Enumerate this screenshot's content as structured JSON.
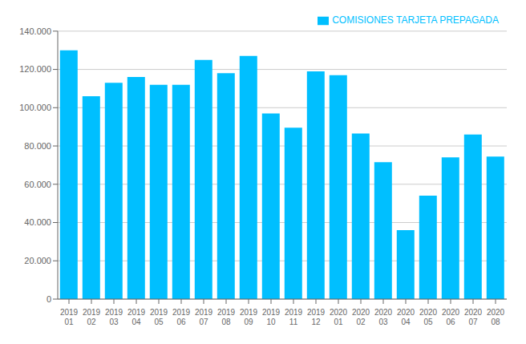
{
  "chart_data": {
    "type": "bar",
    "categories": [
      "2019\n01",
      "2019\n02",
      "2019\n03",
      "2019\n04",
      "2019\n05",
      "2019\n06",
      "2019\n07",
      "2019\n08",
      "2019\n09",
      "2019\n10",
      "2019\n11",
      "2019\n12",
      "2020\n01",
      "2020\n02",
      "2020\n03",
      "2020\n04",
      "2020\n05",
      "2020\n06",
      "2020\n07",
      "2020\n08"
    ],
    "series": [
      {
        "name": "COMISIONES TARJETA PREPAGADA",
        "color": "#00BFFF",
        "values": [
          130000,
          106000,
          113000,
          116000,
          112000,
          112000,
          125000,
          118000,
          127000,
          97000,
          89500,
          119000,
          117000,
          86500,
          71500,
          36000,
          54000,
          74000,
          86000,
          74500
        ]
      }
    ],
    "ylim": [
      0,
      140000
    ],
    "yticks": [
      0,
      {
        "value": 20000,
        "label": "20.000"
      },
      {
        "value": 40000,
        "label": "40.000"
      },
      {
        "value": 60000,
        "label": "60.000"
      },
      {
        "value": 80000,
        "label": "80.000"
      },
      {
        "value": 100000,
        "label": "100.000"
      },
      {
        "value": 120000,
        "label": "120.000"
      },
      {
        "value": 140000,
        "label": "140.000"
      }
    ],
    "grid": true,
    "legend": "upper right"
  }
}
